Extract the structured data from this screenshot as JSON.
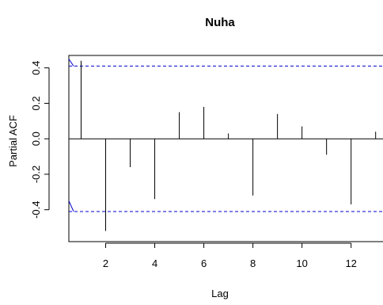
{
  "chart_data": {
    "type": "bar",
    "title": "Nuha",
    "xlabel": "Lag",
    "ylabel": "Partial ACF",
    "x": [
      1,
      2,
      3,
      4,
      5,
      6,
      7,
      8,
      9,
      10,
      11,
      12,
      13
    ],
    "values": [
      0.44,
      -0.52,
      -0.16,
      -0.34,
      0.15,
      0.18,
      0.03,
      -0.32,
      0.14,
      0.07,
      -0.09,
      -0.37,
      0.04
    ],
    "xlim": [
      0.5,
      13.3
    ],
    "ylim": [
      -0.58,
      0.47
    ],
    "x_ticks": [
      2,
      4,
      6,
      8,
      10,
      12
    ],
    "y_ticks": [
      -0.4,
      -0.2,
      0.0,
      0.2,
      0.4
    ],
    "y_tick_labels": [
      "-0.4",
      "-0.2",
      "0.0",
      "0.2",
      "0.4"
    ],
    "confidence_bound": 0.41,
    "colors": {
      "bars": "#000000",
      "bounds": "#0000cc",
      "axis": "#000000"
    }
  }
}
